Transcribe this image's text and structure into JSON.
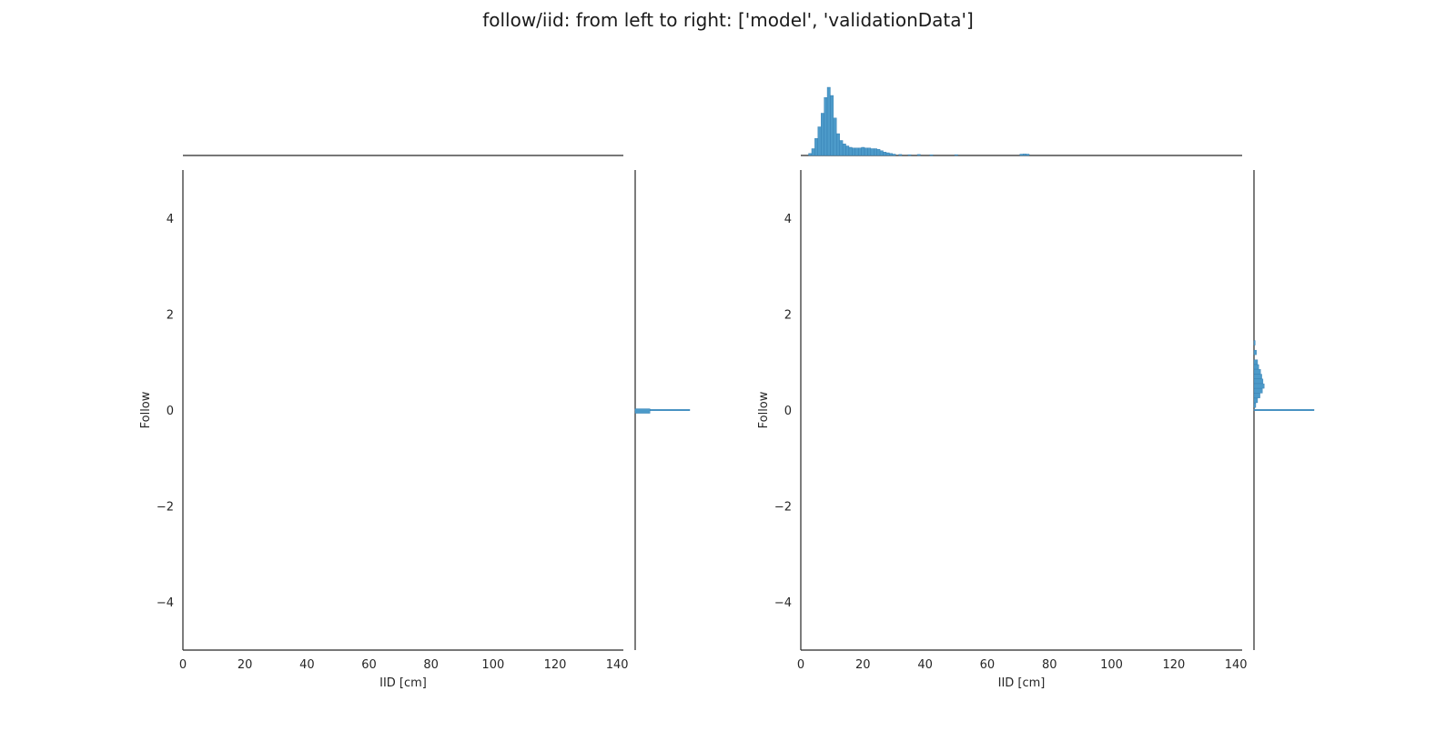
{
  "title": "follow/iid: from left to right: ['model', 'validationData']",
  "colors": {
    "hist": "#4c9ac9",
    "hist_edge": "#2f7bb0",
    "axis": "#262626"
  },
  "chart_data": [
    {
      "type": "scatter",
      "panel": "model",
      "xlabel": "IID [cm]",
      "ylabel": "Follow",
      "xlim": [
        0,
        142
      ],
      "ylim": [
        -5,
        5
      ],
      "xticks": [
        0,
        20,
        40,
        60,
        80,
        100,
        120,
        140
      ],
      "yticks": [
        -4,
        -2,
        0,
        2,
        4
      ],
      "ytick_labels": [
        "−4",
        "−2",
        "0",
        "2",
        "4"
      ],
      "x_marginal": [],
      "y_marginal": [
        {
          "y": 0.0,
          "count": 1.0
        },
        {
          "y": -0.02,
          "count": 0.27
        }
      ]
    },
    {
      "type": "scatter",
      "panel": "validationData",
      "xlabel": "IID [cm]",
      "ylabel": "Follow",
      "xlim": [
        0,
        142
      ],
      "ylim": [
        -5,
        5
      ],
      "xticks": [
        0,
        20,
        40,
        60,
        80,
        100,
        120,
        140
      ],
      "yticks": [
        -4,
        -2,
        0,
        2,
        4
      ],
      "ytick_labels": [
        "−4",
        "−2",
        "0",
        "2",
        "4"
      ],
      "x_marginal": [
        {
          "x": 3,
          "count": 0.03
        },
        {
          "x": 4,
          "count": 0.1
        },
        {
          "x": 5,
          "count": 0.25
        },
        {
          "x": 6,
          "count": 0.42
        },
        {
          "x": 7,
          "count": 0.62
        },
        {
          "x": 8,
          "count": 0.85
        },
        {
          "x": 9,
          "count": 1.0
        },
        {
          "x": 10,
          "count": 0.88
        },
        {
          "x": 11,
          "count": 0.55
        },
        {
          "x": 12,
          "count": 0.32
        },
        {
          "x": 13,
          "count": 0.22
        },
        {
          "x": 14,
          "count": 0.17
        },
        {
          "x": 15,
          "count": 0.14
        },
        {
          "x": 16,
          "count": 0.12
        },
        {
          "x": 17,
          "count": 0.11
        },
        {
          "x": 18,
          "count": 0.11
        },
        {
          "x": 19,
          "count": 0.11
        },
        {
          "x": 20,
          "count": 0.12
        },
        {
          "x": 21,
          "count": 0.11
        },
        {
          "x": 22,
          "count": 0.11
        },
        {
          "x": 23,
          "count": 0.1
        },
        {
          "x": 24,
          "count": 0.1
        },
        {
          "x": 25,
          "count": 0.09
        },
        {
          "x": 26,
          "count": 0.07
        },
        {
          "x": 27,
          "count": 0.05
        },
        {
          "x": 28,
          "count": 0.04
        },
        {
          "x": 29,
          "count": 0.03
        },
        {
          "x": 30,
          "count": 0.02
        },
        {
          "x": 32,
          "count": 0.015
        },
        {
          "x": 35,
          "count": 0.012
        },
        {
          "x": 38,
          "count": 0.015
        },
        {
          "x": 42,
          "count": 0.01
        },
        {
          "x": 50,
          "count": 0.012
        },
        {
          "x": 71,
          "count": 0.02
        },
        {
          "x": 72,
          "count": 0.022
        },
        {
          "x": 73,
          "count": 0.02
        }
      ],
      "y_marginal": [
        {
          "y": 1.4,
          "count": 0.02
        },
        {
          "y": 1.2,
          "count": 0.04
        },
        {
          "y": 1.0,
          "count": 0.06
        },
        {
          "y": 0.9,
          "count": 0.08
        },
        {
          "y": 0.8,
          "count": 0.11
        },
        {
          "y": 0.7,
          "count": 0.13
        },
        {
          "y": 0.6,
          "count": 0.15
        },
        {
          "y": 0.5,
          "count": 0.17
        },
        {
          "y": 0.4,
          "count": 0.14
        },
        {
          "y": 0.3,
          "count": 0.1
        },
        {
          "y": 0.2,
          "count": 0.06
        },
        {
          "y": 0.1,
          "count": 0.03
        },
        {
          "y": 0.0,
          "count": 1.0
        }
      ]
    }
  ]
}
